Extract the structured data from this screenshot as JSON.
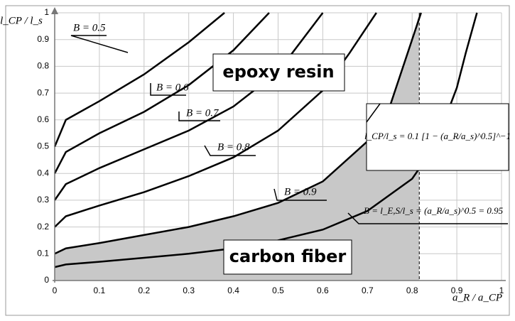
{
  "chart_data": {
    "type": "line",
    "y_label": "l_CP / l_s",
    "x_label": "a_R / a_CP",
    "annotations": [
      "epoxy resin",
      "carbon fiber",
      "l_CP/l_s = 0.1 [1 − (a_R/a_s)^0.5]^−1"
    ],
    "dashed_x": 0.816,
    "shade_color": "#c8c8c8",
    "xlim": [
      0,
      1
    ],
    "ylim": [
      0,
      1
    ],
    "xticks": [
      0,
      0.1,
      0.2,
      0.3,
      0.4,
      0.5,
      0.6,
      0.7,
      0.8,
      0.9,
      1
    ],
    "yticks": [
      0,
      0.1,
      0.2,
      0.3,
      0.4,
      0.5,
      0.6,
      0.7,
      0.8,
      0.9,
      1
    ],
    "grid": true,
    "series": [
      {
        "name": "B = 0.5",
        "color": "#000000",
        "x": [
          0,
          0.025,
          0.1,
          0.2,
          0.3,
          0.38
        ],
        "values": [
          0.5,
          0.6,
          0.67,
          0.77,
          0.89,
          1.0
        ]
      },
      {
        "name": "B = 0.6",
        "color": "#000000",
        "x": [
          0,
          0.025,
          0.1,
          0.2,
          0.3,
          0.4,
          0.48
        ],
        "values": [
          0.4,
          0.48,
          0.55,
          0.63,
          0.73,
          0.86,
          1.0
        ]
      },
      {
        "name": "B = 0.7",
        "color": "#000000",
        "x": [
          0,
          0.025,
          0.1,
          0.2,
          0.3,
          0.4,
          0.5,
          0.6
        ],
        "values": [
          0.3,
          0.36,
          0.42,
          0.49,
          0.56,
          0.65,
          0.78,
          1.0
        ]
      },
      {
        "name": "B = 0.8",
        "color": "#000000",
        "x": [
          0,
          0.025,
          0.1,
          0.2,
          0.3,
          0.4,
          0.5,
          0.6,
          0.66,
          0.72
        ],
        "values": [
          0.2,
          0.24,
          0.28,
          0.33,
          0.39,
          0.46,
          0.56,
          0.71,
          0.85,
          1.0
        ]
      },
      {
        "name": "B = 0.9",
        "color": "#000000",
        "x": [
          0,
          0.025,
          0.1,
          0.2,
          0.3,
          0.4,
          0.5,
          0.6,
          0.7,
          0.75,
          0.8,
          0.82
        ],
        "values": [
          0.1,
          0.12,
          0.14,
          0.17,
          0.2,
          0.24,
          0.29,
          0.37,
          0.52,
          0.65,
          0.9,
          1.0
        ]
      },
      {
        "name": "B = l_E,S/l_s = (a_R/a_s)^0.5 = 0.95",
        "color": "#000000",
        "x": [
          0,
          0.025,
          0.1,
          0.2,
          0.3,
          0.4,
          0.5,
          0.6,
          0.7,
          0.8,
          0.85,
          0.9,
          0.92,
          0.945
        ],
        "values": [
          0.05,
          0.06,
          0.07,
          0.085,
          0.1,
          0.12,
          0.15,
          0.19,
          0.26,
          0.38,
          0.5,
          0.72,
          0.85,
          1.0
        ]
      }
    ]
  }
}
